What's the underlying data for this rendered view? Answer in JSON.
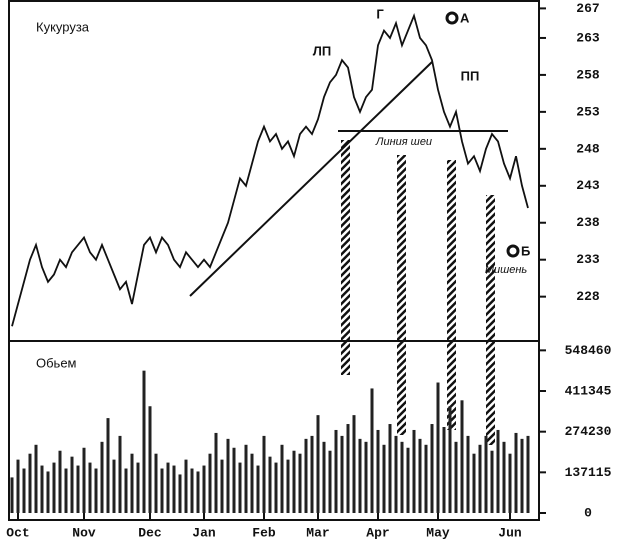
{
  "chart_data": [
    {
      "type": "line",
      "title": "Кукуруза",
      "color": "#111",
      "categories": [
        null,
        "Oct",
        null,
        null,
        null,
        null,
        null,
        null,
        null,
        null,
        null,
        null,
        "Nov",
        null,
        null,
        null,
        null,
        null,
        null,
        null,
        null,
        null,
        null,
        "Dec",
        null,
        null,
        null,
        null,
        null,
        null,
        null,
        null,
        "Jan",
        null,
        null,
        null,
        null,
        null,
        null,
        null,
        null,
        null,
        "Feb",
        null,
        null,
        null,
        null,
        null,
        null,
        null,
        null,
        "Mar",
        null,
        null,
        null,
        null,
        null,
        null,
        null,
        null,
        null,
        "Apr",
        null,
        null,
        null,
        null,
        null,
        null,
        null,
        null,
        null,
        "May",
        null,
        null,
        null,
        null,
        null,
        null,
        null,
        null,
        null,
        null,
        null,
        "Jun",
        null,
        null,
        null
      ],
      "values": [
        224,
        227,
        230,
        233,
        235,
        232,
        230,
        231,
        233,
        232,
        234,
        235,
        236,
        234,
        233,
        235,
        233,
        231,
        229,
        230,
        227,
        231,
        235,
        236,
        234,
        236,
        235,
        233,
        232,
        234,
        233,
        232,
        233,
        232,
        234,
        236,
        238,
        241,
        244,
        243,
        246,
        249,
        251,
        249,
        250,
        248,
        249,
        247,
        250,
        251,
        250,
        252,
        255,
        257,
        258,
        260,
        259,
        255,
        253,
        255,
        256,
        262,
        264,
        263,
        265,
        262,
        264,
        266,
        263,
        262,
        260,
        256,
        253,
        251,
        253,
        249,
        246,
        247,
        245,
        248,
        250,
        249,
        246,
        244,
        247,
        243,
        240
      ],
      "ylim": [
        222,
        268
      ],
      "yticks": [
        267,
        263,
        258,
        253,
        248,
        243,
        238,
        233,
        228
      ],
      "annotations": [
        "ЛП",
        "Г",
        "А",
        "ПП",
        "Линия шеи",
        "Б",
        "Мишень"
      ]
    },
    {
      "type": "bar",
      "title": "Обьем",
      "color": "#222",
      "values": [
        120000,
        180000,
        150000,
        200000,
        230000,
        160000,
        140000,
        170000,
        210000,
        150000,
        190000,
        160000,
        220000,
        170000,
        150000,
        240000,
        320000,
        180000,
        260000,
        150000,
        200000,
        170000,
        480000,
        360000,
        200000,
        150000,
        170000,
        160000,
        130000,
        180000,
        150000,
        140000,
        160000,
        200000,
        270000,
        180000,
        250000,
        220000,
        170000,
        230000,
        200000,
        160000,
        260000,
        190000,
        170000,
        230000,
        180000,
        210000,
        200000,
        250000,
        260000,
        330000,
        240000,
        210000,
        280000,
        260000,
        300000,
        330000,
        250000,
        240000,
        420000,
        280000,
        230000,
        300000,
        260000,
        240000,
        220000,
        280000,
        250000,
        230000,
        300000,
        440000,
        290000,
        360000,
        240000,
        380000,
        260000,
        200000,
        230000,
        260000,
        210000,
        280000,
        240000,
        200000,
        270000,
        250000,
        260000
      ],
      "ylim": [
        0,
        580000
      ],
      "yticks": [
        548460,
        411345,
        274230,
        137115,
        0
      ]
    }
  ]
}
